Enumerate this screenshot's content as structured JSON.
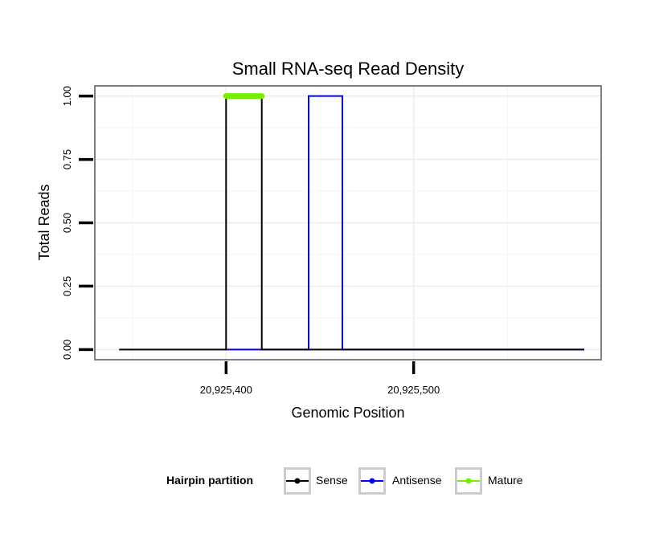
{
  "chart_data": {
    "type": "line",
    "title": "Small RNA-seq Read Density",
    "xlabel": "Genomic Position",
    "ylabel": "Total Reads",
    "xlim": [
      20925330,
      20925600
    ],
    "ylim": [
      -0.04,
      1.04
    ],
    "x_ticks": [
      {
        "value": 20925400,
        "label": "20,925,400"
      },
      {
        "value": 20925500,
        "label": "20,925,500"
      }
    ],
    "y_ticks": [
      {
        "value": 0.0,
        "label": "0.00"
      },
      {
        "value": 0.25,
        "label": "0.25"
      },
      {
        "value": 0.5,
        "label": "0.50"
      },
      {
        "value": 0.75,
        "label": "0.75"
      },
      {
        "value": 1.0,
        "label": "1.00"
      }
    ],
    "grid": true,
    "legend": {
      "title": "Hairpin partition",
      "position": "bottom"
    },
    "series": [
      {
        "name": "Sense",
        "color": "#000000",
        "x": [
          20925343,
          20925400,
          20925400,
          20925419,
          20925419,
          20925591
        ],
        "y": [
          0,
          0,
          1,
          1,
          0,
          0
        ]
      },
      {
        "name": "Antisense",
        "color": "#0000ee",
        "x": [
          20925400,
          20925444,
          20925444,
          20925462,
          20925462,
          20925591
        ],
        "y": [
          0,
          0,
          1,
          1,
          0,
          0
        ]
      },
      {
        "name": "Mature",
        "color": "#77ee00",
        "x": [
          20925400,
          20925419
        ],
        "y": [
          1,
          1
        ]
      }
    ]
  }
}
